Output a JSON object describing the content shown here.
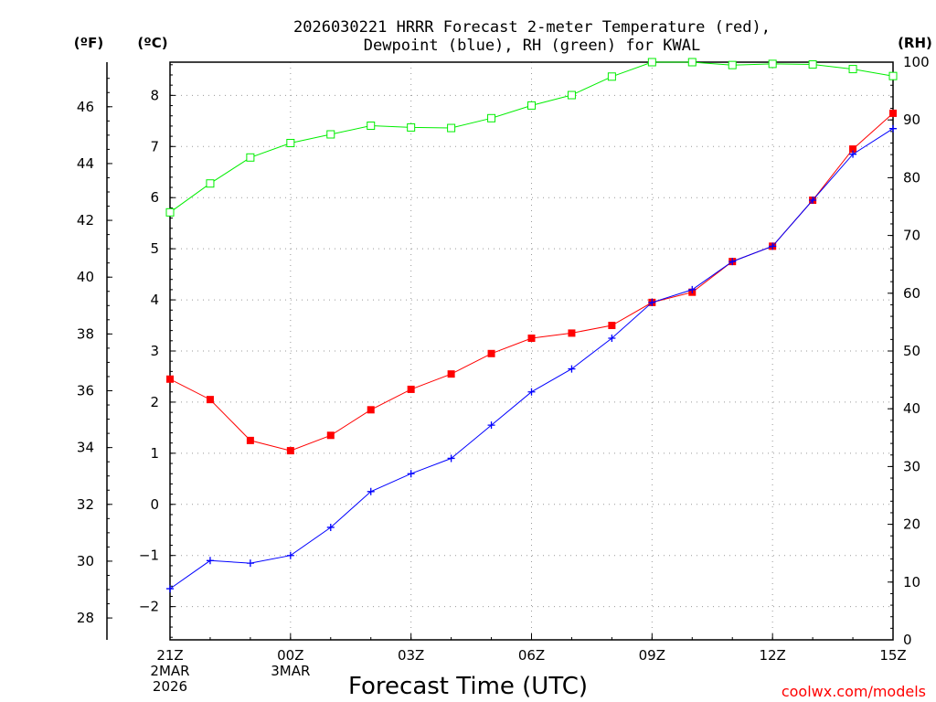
{
  "chart_data": {
    "type": "line",
    "title_lines": [
      "2026030221 HRRR Forecast 2-meter Temperature (red),",
      "Dewpoint (blue), RH (green) for KWAL"
    ],
    "xlabel": "Forecast Time (UTC)",
    "credit": "coolwx.com/models",
    "unit_labels": {
      "fahrenheit": "(ºF)",
      "celsius": "(ºC)",
      "rh": "(RH)"
    },
    "x_hours": [
      0,
      1,
      2,
      3,
      4,
      5,
      6,
      7,
      8,
      9,
      10,
      11,
      12,
      13,
      14,
      15,
      16,
      17,
      18
    ],
    "xlim": [
      0,
      18
    ],
    "x_ticks": [
      {
        "hour": 0,
        "lines": [
          "21Z",
          "2MAR",
          "2026"
        ]
      },
      {
        "hour": 3,
        "lines": [
          "00Z",
          "3MAR"
        ]
      },
      {
        "hour": 6,
        "lines": [
          "03Z"
        ]
      },
      {
        "hour": 9,
        "lines": [
          "06Z"
        ]
      },
      {
        "hour": 12,
        "lines": [
          "09Z"
        ]
      },
      {
        "hour": 15,
        "lines": [
          "12Z"
        ]
      },
      {
        "hour": 18,
        "lines": [
          "15Z"
        ]
      }
    ],
    "celsius_axis": {
      "ylim": [
        -2.65,
        8.65
      ],
      "ticks": [
        -2,
        -1,
        0,
        1,
        2,
        3,
        4,
        5,
        6,
        7,
        8
      ],
      "tick_labels": [
        "−2",
        "−1",
        "0",
        "1",
        "2",
        "3",
        "4",
        "5",
        "6",
        "7",
        "8"
      ]
    },
    "fahrenheit_axis": {
      "ticks": [
        28,
        30,
        32,
        34,
        36,
        38,
        40,
        42,
        44,
        46
      ],
      "tick_labels": [
        "28",
        "30",
        "32",
        "34",
        "36",
        "38",
        "40",
        "42",
        "44",
        "46"
      ]
    },
    "rh_axis": {
      "ylim": [
        0,
        100
      ],
      "ticks": [
        0,
        10,
        20,
        30,
        40,
        50,
        60,
        70,
        80,
        90,
        100
      ],
      "tick_labels": [
        "0",
        "10",
        "20",
        "30",
        "40",
        "50",
        "60",
        "70",
        "80",
        "90",
        "100"
      ]
    },
    "series": [
      {
        "name": "Temperature",
        "unit": "C",
        "color": "#ff0000",
        "marker": "square-filled",
        "values": [
          2.45,
          2.05,
          1.25,
          1.05,
          1.35,
          1.85,
          2.25,
          2.55,
          2.95,
          3.25,
          3.35,
          3.5,
          3.95,
          4.15,
          4.75,
          5.05,
          5.95,
          6.95,
          7.65
        ]
      },
      {
        "name": "Dewpoint",
        "unit": "C",
        "color": "#0000ff",
        "marker": "plus",
        "values": [
          -1.65,
          -1.1,
          -1.15,
          -1.0,
          -0.45,
          0.25,
          0.6,
          0.9,
          1.55,
          2.2,
          2.65,
          3.25,
          3.95,
          4.2,
          4.75,
          5.05,
          5.95,
          6.85,
          7.35
        ]
      },
      {
        "name": "RH",
        "unit": "%",
        "color": "#00ee00",
        "marker": "square-open",
        "values": [
          74,
          79,
          83.5,
          86,
          87.5,
          89,
          88.7,
          88.6,
          90.3,
          92.5,
          94.3,
          97.5,
          100,
          100,
          99.5,
          99.7,
          99.6,
          98.8,
          97.6
        ]
      }
    ]
  }
}
